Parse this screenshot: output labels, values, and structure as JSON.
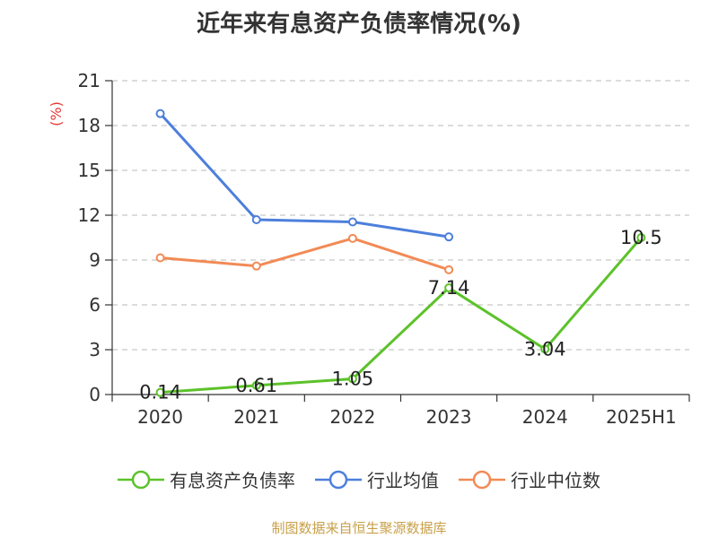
{
  "title": "近年来有息资产负债率情况(%)",
  "source": "制图数据来自恒生聚源数据库",
  "source_color": "#c8a04a",
  "chart_data": {
    "type": "line",
    "categories": [
      "2020",
      "2021",
      "2022",
      "2023",
      "2024",
      "2025H1"
    ],
    "ylabel": "(%)",
    "ylabel_color": "#e53935",
    "ylim": [
      0,
      21
    ],
    "yticks": [
      0,
      3,
      6,
      9,
      12,
      15,
      18,
      21
    ],
    "grid": true,
    "legend_position": "bottom",
    "series": [
      {
        "name": "有息资产负债率",
        "color": "#5cc22a",
        "values": [
          0.14,
          0.61,
          1.05,
          7.14,
          3.04,
          10.5
        ],
        "labels": [
          "0.14",
          "0.61",
          "1.05",
          "7.14",
          "3.04",
          "10.5"
        ]
      },
      {
        "name": "行业均值",
        "color": "#4d7fdb",
        "values": [
          18.8,
          11.7,
          11.55,
          10.55,
          null,
          null
        ]
      },
      {
        "name": "行业中位数",
        "color": "#f28a55",
        "values": [
          9.15,
          8.6,
          10.45,
          8.35,
          null,
          null
        ]
      }
    ]
  }
}
